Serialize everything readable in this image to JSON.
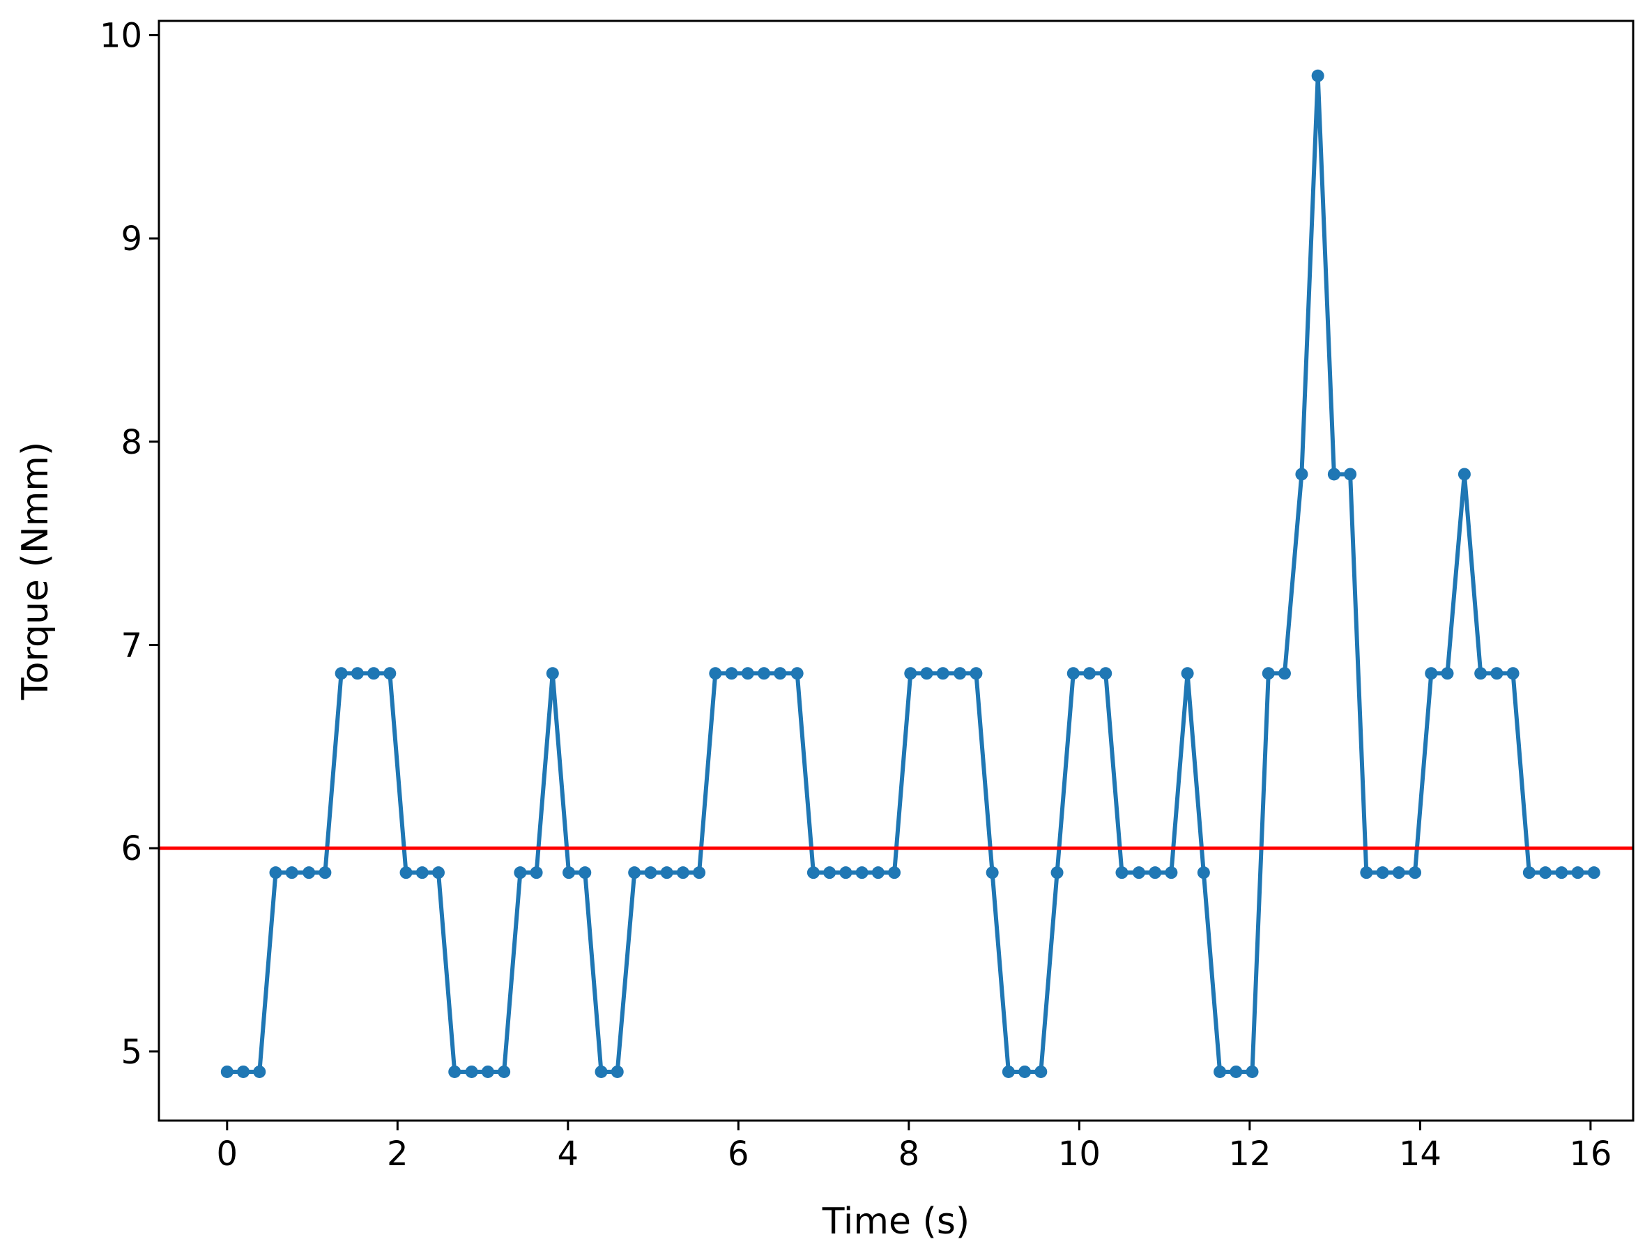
{
  "chart_data": {
    "type": "line",
    "title": "",
    "xlabel": "Time (s)",
    "ylabel": "Torque (Nmm)",
    "xlim": [
      -0.8,
      16.5
    ],
    "ylim": [
      4.66,
      10.07
    ],
    "xticks": [
      0,
      2,
      4,
      6,
      8,
      10,
      12,
      14,
      16
    ],
    "yticks": [
      5,
      6,
      7,
      8,
      9,
      10
    ],
    "grid": false,
    "colors": {
      "series": "#1f77b4",
      "threshold": "#ff0000"
    },
    "threshold": {
      "y": 6.0
    },
    "series": [
      {
        "x": [
          0.0,
          0.19,
          0.38,
          0.57,
          0.76,
          0.96,
          1.15,
          1.34,
          1.53,
          1.72,
          1.91,
          2.1,
          2.29,
          2.48,
          2.67,
          2.87,
          3.06,
          3.25,
          3.44,
          3.63,
          3.82,
          4.01,
          4.2,
          4.39,
          4.58,
          4.78,
          4.97,
          5.16,
          5.35,
          5.54,
          5.73,
          5.92,
          6.11,
          6.3,
          6.49,
          6.69,
          6.88,
          7.07,
          7.26,
          7.45,
          7.64,
          7.83,
          8.02,
          8.21,
          8.4,
          8.6,
          8.79,
          8.98,
          9.17,
          9.36,
          9.55,
          9.74,
          9.93,
          10.12,
          10.31,
          10.5,
          10.7,
          10.89,
          11.08,
          11.27,
          11.46,
          11.65,
          11.84,
          12.03,
          12.22,
          12.41,
          12.61,
          12.8,
          12.99,
          13.18,
          13.37,
          13.56,
          13.75,
          13.94,
          14.13,
          14.32,
          14.52,
          14.71,
          14.9,
          15.09,
          15.28,
          15.47,
          15.66,
          15.85,
          16.04
        ],
        "y": [
          4.9,
          4.9,
          4.9,
          5.88,
          5.88,
          5.88,
          5.88,
          6.86,
          6.86,
          6.86,
          6.86,
          5.88,
          5.88,
          5.88,
          4.9,
          4.9,
          4.9,
          4.9,
          5.88,
          5.88,
          6.86,
          5.88,
          5.88,
          4.9,
          4.9,
          5.88,
          5.88,
          5.88,
          5.88,
          5.88,
          6.86,
          6.86,
          6.86,
          6.86,
          6.86,
          6.86,
          5.88,
          5.88,
          5.88,
          5.88,
          5.88,
          5.88,
          6.86,
          6.86,
          6.86,
          6.86,
          6.86,
          5.88,
          4.9,
          4.9,
          4.9,
          5.88,
          6.86,
          6.86,
          6.86,
          5.88,
          5.88,
          5.88,
          5.88,
          6.86,
          5.88,
          4.9,
          4.9,
          4.9,
          6.86,
          6.86,
          7.84,
          9.8,
          7.84,
          7.84,
          5.88,
          5.88,
          5.88,
          5.88,
          6.86,
          6.86,
          7.84,
          6.86,
          6.86,
          6.86,
          5.88,
          5.88,
          5.88,
          5.88,
          5.88
        ]
      }
    ]
  }
}
